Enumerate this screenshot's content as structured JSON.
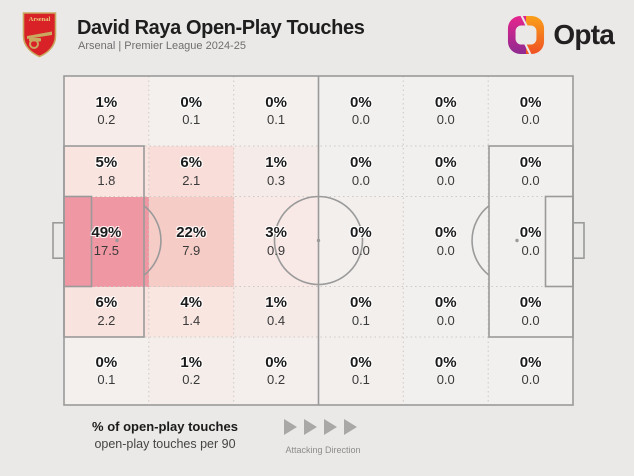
{
  "header": {
    "title": "David Raya Open-Play Touches",
    "subtitle": "Arsenal | Premier League 2024-25",
    "club": "Arsenal",
    "brand": "Opta"
  },
  "legend": {
    "primary": "% of open-play touches",
    "secondary": "open-play touches per 90",
    "direction_label": "Attacking Direction"
  },
  "colors": {
    "background": "#ebe9e7",
    "cell_base": "#f2f0ee",
    "pitch_line": "#9a9a9a",
    "heat_max": "#ef97a2",
    "opta_magenta": "#e5258e",
    "opta_purple": "#8f2a90",
    "opta_orange": "#f7941e",
    "arsenal_red": "#d92128",
    "arsenal_gold": "#c9a860"
  },
  "chart_data": {
    "type": "heatmap",
    "title": "David Raya Open-Play Touches",
    "subtitle": "Arsenal | Premier League 2024-25",
    "rows": 5,
    "cols": 6,
    "orientation": "attacking left-to-right",
    "unit_primary": "% of open-play touches",
    "unit_secondary": "open-play touches per 90",
    "cells": [
      {
        "row": 0,
        "col": 0,
        "pct": "1%",
        "per90": "0.2",
        "color": "#f6ecea"
      },
      {
        "row": 0,
        "col": 1,
        "pct": "0%",
        "per90": "0.1",
        "color": "#f3f0ee"
      },
      {
        "row": 0,
        "col": 2,
        "pct": "0%",
        "per90": "0.1",
        "color": "#f3f0ee"
      },
      {
        "row": 0,
        "col": 3,
        "pct": "0%",
        "per90": "0.0",
        "color": "#f2f0ee"
      },
      {
        "row": 0,
        "col": 4,
        "pct": "0%",
        "per90": "0.0",
        "color": "#f2f0ee"
      },
      {
        "row": 0,
        "col": 5,
        "pct": "0%",
        "per90": "0.0",
        "color": "#f2f0ee"
      },
      {
        "row": 1,
        "col": 0,
        "pct": "5%",
        "per90": "1.8",
        "color": "#f9e4e0"
      },
      {
        "row": 1,
        "col": 1,
        "pct": "6%",
        "per90": "2.1",
        "color": "#f8ddd8"
      },
      {
        "row": 1,
        "col": 2,
        "pct": "1%",
        "per90": "0.3",
        "color": "#f5ebe8"
      },
      {
        "row": 1,
        "col": 3,
        "pct": "0%",
        "per90": "0.0",
        "color": "#f2f0ee"
      },
      {
        "row": 1,
        "col": 4,
        "pct": "0%",
        "per90": "0.0",
        "color": "#f2f0ee"
      },
      {
        "row": 1,
        "col": 5,
        "pct": "0%",
        "per90": "0.0",
        "color": "#f2f0ee"
      },
      {
        "row": 2,
        "col": 0,
        "pct": "49%",
        "per90": "17.5",
        "color": "#ef97a2"
      },
      {
        "row": 2,
        "col": 1,
        "pct": "22%",
        "per90": "7.9",
        "color": "#f6ccc7"
      },
      {
        "row": 2,
        "col": 2,
        "pct": "3%",
        "per90": "0.9",
        "color": "#f8e9e6"
      },
      {
        "row": 2,
        "col": 3,
        "pct": "0%",
        "per90": "0.0",
        "color": "#f3efed"
      },
      {
        "row": 2,
        "col": 4,
        "pct": "0%",
        "per90": "0.0",
        "color": "#f2f0ee"
      },
      {
        "row": 2,
        "col": 5,
        "pct": "0%",
        "per90": "0.0",
        "color": "#f2f0ee"
      },
      {
        "row": 3,
        "col": 0,
        "pct": "6%",
        "per90": "2.2",
        "color": "#f9e3de"
      },
      {
        "row": 3,
        "col": 1,
        "pct": "4%",
        "per90": "1.4",
        "color": "#f9e6e1"
      },
      {
        "row": 3,
        "col": 2,
        "pct": "1%",
        "per90": "0.4",
        "color": "#f6eae7"
      },
      {
        "row": 3,
        "col": 3,
        "pct": "0%",
        "per90": "0.1",
        "color": "#f3efed"
      },
      {
        "row": 3,
        "col": 4,
        "pct": "0%",
        "per90": "0.0",
        "color": "#f2f0ee"
      },
      {
        "row": 3,
        "col": 5,
        "pct": "0%",
        "per90": "0.0",
        "color": "#f2f0ee"
      },
      {
        "row": 4,
        "col": 0,
        "pct": "0%",
        "per90": "0.1",
        "color": "#f3f0ee"
      },
      {
        "row": 4,
        "col": 1,
        "pct": "1%",
        "per90": "0.2",
        "color": "#f5edea"
      },
      {
        "row": 4,
        "col": 2,
        "pct": "0%",
        "per90": "0.2",
        "color": "#f4eeec"
      },
      {
        "row": 4,
        "col": 3,
        "pct": "0%",
        "per90": "0.1",
        "color": "#f3efed"
      },
      {
        "row": 4,
        "col": 4,
        "pct": "0%",
        "per90": "0.0",
        "color": "#f2f0ee"
      },
      {
        "row": 4,
        "col": 5,
        "pct": "0%",
        "per90": "0.0",
        "color": "#f2f0ee"
      }
    ]
  }
}
